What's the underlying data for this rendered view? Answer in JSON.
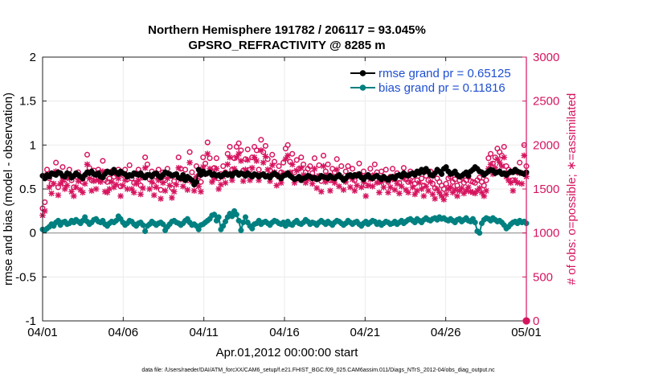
{
  "chart_data": {
    "type": "line",
    "title": "Northern Hemisphere 191782 / 206117 = 93.045%",
    "subtitle": "GPSRO_REFRACTIVITY @ 8285 m",
    "xlabel": "Apr.01,2012 00:00:00 start",
    "ylabel": "rmse and bias (model - observation)",
    "y2label": "# of obs: o=possible; ∗=assimilated",
    "footnote": "data file: /Users/raeder/DAI/ATM_forcXX/CAM6_setup/f.e21.FHIST_BGC.f09_025.CAM6assim.011/Diags_NTrS_2012-04/obs_diag_output.nc",
    "x_range_days": [
      0,
      30
    ],
    "ylim": [
      -1,
      2
    ],
    "y2lim": [
      0,
      3000
    ],
    "x_tick_labels": [
      "04/01",
      "04/06",
      "04/11",
      "04/16",
      "04/21",
      "04/26",
      "05/01"
    ],
    "y_tick_labels": [
      "-1",
      "-0.5",
      "0",
      "0.5",
      "1",
      "1.5",
      "2"
    ],
    "y2_tick_labels": [
      "0",
      "500",
      "1000",
      "1500",
      "2000",
      "2500",
      "3000"
    ],
    "grid": true,
    "legend_position": "top-right",
    "colors": {
      "rmse": "#000000",
      "bias": "#008080",
      "counts": "#d6145f",
      "legend_text": "#1f4fd1",
      "grid": "#ebebeb"
    },
    "series": [
      {
        "name": "rmse grand pr = 0.65125",
        "axis": "left",
        "values": [
          0.65,
          0.62,
          0.66,
          0.64,
          0.68,
          0.67,
          0.66,
          0.69,
          0.68,
          0.65,
          0.64,
          0.68,
          0.67,
          0.63,
          0.65,
          0.68,
          0.66,
          0.64,
          0.62,
          0.66,
          0.69,
          0.68,
          0.7,
          0.67,
          0.66,
          0.68,
          0.64,
          0.63,
          0.67,
          0.7,
          0.69,
          0.68,
          0.72,
          0.69,
          0.67,
          0.7,
          0.68,
          0.67,
          0.64,
          0.66,
          0.65,
          0.68,
          0.67,
          0.66,
          0.68,
          0.65,
          0.63,
          0.66,
          0.66,
          0.64,
          0.67,
          0.68,
          0.65,
          0.63,
          0.66,
          0.69,
          0.68,
          0.67,
          0.65,
          0.66,
          0.67,
          0.63,
          0.62,
          0.66,
          0.6,
          0.64,
          0.62,
          0.6,
          0.55,
          0.58,
          0.72,
          0.66,
          0.7,
          0.67,
          0.68,
          0.69,
          0.66,
          0.67,
          0.65,
          0.66,
          0.64,
          0.66,
          0.68,
          0.66,
          0.67,
          0.65,
          0.68,
          0.69,
          0.66,
          0.68,
          0.67,
          0.65,
          0.68,
          0.66,
          0.64,
          0.67,
          0.66,
          0.64,
          0.66,
          0.67,
          0.64,
          0.65,
          0.63,
          0.66,
          0.68,
          0.66,
          0.64,
          0.62,
          0.65,
          0.66,
          0.68,
          0.65,
          0.63,
          0.61,
          0.62,
          0.64,
          0.6,
          0.62,
          0.63,
          0.65,
          0.64,
          0.62,
          0.63,
          0.61,
          0.62,
          0.65,
          0.64,
          0.63,
          0.62,
          0.65,
          0.63,
          0.62,
          0.64,
          0.66,
          0.63,
          0.6,
          0.62,
          0.65,
          0.66,
          0.64,
          0.66,
          0.65,
          0.67,
          0.63,
          0.61,
          0.64,
          0.66,
          0.63,
          0.62,
          0.64,
          0.65,
          0.63,
          0.61,
          0.64,
          0.62,
          0.6,
          0.63,
          0.64,
          0.62,
          0.65,
          0.66,
          0.64,
          0.68,
          0.66,
          0.65,
          0.67,
          0.68,
          0.66,
          0.7,
          0.68,
          0.72,
          0.69,
          0.73,
          0.7,
          0.66,
          0.65,
          0.68,
          0.72,
          0.7,
          0.67,
          0.73,
          0.75,
          0.7,
          0.67,
          0.68,
          0.7,
          0.66,
          0.64,
          0.65,
          0.67,
          0.69,
          0.65,
          0.7,
          0.72,
          0.75,
          0.73,
          0.7,
          0.69,
          0.66,
          0.68,
          0.7,
          0.72,
          0.71,
          0.68,
          0.69,
          0.7,
          0.67,
          0.68,
          0.66,
          0.68,
          0.7,
          0.69,
          0.72,
          0.7,
          0.69,
          0.68,
          0.67,
          0.69
        ]
      },
      {
        "name": "bias grand pr = 0.11816",
        "axis": "left",
        "values": [
          0.04,
          0.03,
          0.05,
          0.07,
          0.1,
          0.08,
          0.12,
          0.14,
          0.09,
          0.12,
          0.13,
          0.1,
          0.11,
          0.14,
          0.12,
          0.15,
          0.13,
          0.11,
          0.14,
          0.18,
          0.13,
          0.1,
          0.12,
          0.15,
          0.16,
          0.13,
          0.12,
          0.14,
          0.1,
          0.08,
          0.11,
          0.13,
          0.12,
          0.14,
          0.19,
          0.16,
          0.12,
          0.09,
          0.11,
          0.14,
          0.13,
          0.1,
          0.08,
          0.11,
          0.12,
          0.09,
          0.02,
          0.08,
          0.1,
          0.13,
          0.11,
          0.09,
          0.11,
          0.12,
          0.1,
          0.03,
          0.07,
          0.1,
          0.13,
          0.14,
          0.12,
          0.11,
          0.09,
          0.11,
          0.14,
          0.16,
          0.12,
          0.09,
          0.1,
          0.08,
          0.04,
          0.09,
          0.1,
          0.12,
          0.14,
          0.16,
          0.2,
          0.21,
          0.14,
          0.18,
          0.04,
          0.08,
          0.13,
          0.18,
          0.22,
          0.19,
          0.25,
          0.21,
          0.14,
          0.03,
          0.12,
          0.18,
          0.12,
          0.08,
          0.05,
          0.1,
          0.11,
          0.14,
          0.1,
          0.12,
          0.13,
          0.11,
          0.09,
          0.12,
          0.14,
          0.13,
          0.11,
          0.1,
          0.12,
          0.08,
          0.13,
          0.1,
          0.09,
          0.12,
          0.14,
          0.11,
          0.1,
          0.12,
          0.15,
          0.13,
          0.1,
          0.12,
          0.11,
          0.09,
          0.12,
          0.14,
          0.12,
          0.1,
          0.13,
          0.11,
          0.09,
          0.12,
          0.14,
          0.13,
          0.11,
          0.09,
          0.11,
          0.14,
          0.12,
          0.1,
          0.12,
          0.13,
          0.1,
          0.08,
          0.11,
          0.13,
          0.1,
          0.12,
          0.14,
          0.13,
          0.1,
          0.12,
          0.09,
          0.11,
          0.13,
          0.12,
          0.1,
          0.11,
          0.13,
          0.1,
          0.12,
          0.14,
          0.11,
          0.13,
          0.15,
          0.16,
          0.14,
          0.12,
          0.16,
          0.14,
          0.12,
          0.15,
          0.17,
          0.15,
          0.14,
          0.16,
          0.17,
          0.15,
          0.18,
          0.16,
          0.17,
          0.15,
          0.14,
          0.16,
          0.14,
          0.12,
          0.15,
          0.16,
          0.13,
          0.15,
          0.17,
          0.14,
          0.13,
          0.16,
          0.12,
          0.02,
          0.0,
          0.11,
          0.15,
          0.17,
          0.16,
          0.14,
          0.17,
          0.15,
          0.13,
          0.14,
          0.12,
          0.09,
          0.05,
          0.07,
          0.1,
          0.12,
          0.13,
          0.11,
          0.14,
          0.12,
          0.13,
          0.11
        ]
      },
      {
        "name": "possible (o)",
        "axis": "right",
        "marker": "o",
        "values": [
          1280,
          1350,
          1720,
          1620,
          1560,
          1680,
          1800,
          1520,
          1680,
          1750,
          1560,
          1630,
          1720,
          1600,
          1520,
          1640,
          1690,
          1610,
          1580,
          1660,
          1890,
          1740,
          1600,
          1710,
          1630,
          1720,
          1690,
          1820,
          1600,
          1580,
          1620,
          1700,
          1640,
          1670,
          1720,
          1530,
          1660,
          1720,
          1610,
          1770,
          1620,
          1570,
          1680,
          1720,
          1540,
          1630,
          1860,
          1780,
          1610,
          1700,
          1540,
          1640,
          1720,
          1490,
          1690,
          1600,
          1730,
          1650,
          1510,
          1590,
          1670,
          1860,
          1730,
          1640,
          1720,
          1600,
          1920,
          1690,
          1600,
          1760,
          1640,
          1580,
          1860,
          1790,
          2030,
          1850,
          1690,
          1740,
          1850,
          1620,
          1670,
          1760,
          1690,
          1900,
          1980,
          1720,
          1850,
          1980,
          2020,
          1940,
          1710,
          1840,
          1950,
          1720,
          1860,
          1980,
          1940,
          1720,
          2060,
          1920,
          1990,
          1840,
          1710,
          1890,
          1810,
          1660,
          1760,
          1690,
          1800,
          1960,
          2000,
          1810,
          1900,
          1690,
          1830,
          1730,
          1860,
          1780,
          1690,
          1730,
          1760,
          1680,
          1850,
          1630,
          1770,
          1590,
          1880,
          1700,
          1780,
          1600,
          1730,
          1690,
          1840,
          1650,
          1760,
          1610,
          1700,
          1760,
          1640,
          1730,
          1600,
          1660,
          1790,
          1640,
          1700,
          1540,
          1660,
          1730,
          1650,
          1780,
          1690,
          1580,
          1700,
          1640,
          1720,
          1580,
          1640,
          1730,
          1610,
          1680,
          1570,
          1650,
          1740,
          1610,
          1580,
          1700,
          1640,
          1560,
          1600,
          1690,
          1620,
          1540,
          1650,
          1600,
          1700,
          1560,
          1510,
          1620,
          1580,
          1540,
          1500,
          1560,
          1620,
          1640,
          1580,
          1610,
          1540,
          1600,
          1630,
          1570,
          1600,
          1640,
          1590,
          1580,
          1570,
          1600,
          1630,
          1580,
          1540,
          1600,
          1850,
          1900,
          1790,
          1860,
          1960,
          1920,
          1880,
          1980,
          1760,
          1720,
          1690,
          1600,
          1720,
          1690,
          1800,
          1680,
          2000,
          1760
        ]
      },
      {
        "name": "assimilated (∗)",
        "axis": "right",
        "marker": "*",
        "values": [
          1200,
          1250,
          1660,
          1520,
          1450,
          1560,
          1700,
          1430,
          1560,
          1600,
          1500,
          1540,
          1620,
          1470,
          1420,
          1520,
          1590,
          1490,
          1460,
          1560,
          1780,
          1620,
          1480,
          1590,
          1500,
          1600,
          1580,
          1700,
          1470,
          1460,
          1500,
          1580,
          1520,
          1550,
          1620,
          1420,
          1540,
          1600,
          1500,
          1650,
          1500,
          1460,
          1560,
          1600,
          1440,
          1510,
          1740,
          1660,
          1500,
          1580,
          1430,
          1520,
          1600,
          1390,
          1570,
          1480,
          1620,
          1540,
          1400,
          1470,
          1550,
          1740,
          1610,
          1530,
          1600,
          1490,
          1800,
          1580,
          1480,
          1640,
          1530,
          1470,
          1750,
          1670,
          1900,
          1730,
          1580,
          1620,
          1730,
          1500,
          1550,
          1640,
          1570,
          1780,
          1860,
          1600,
          1730,
          1860,
          1900,
          1820,
          1590,
          1720,
          1830,
          1600,
          1740,
          1860,
          1820,
          1600,
          1940,
          1800,
          1870,
          1720,
          1590,
          1770,
          1690,
          1540,
          1640,
          1570,
          1680,
          1840,
          1880,
          1690,
          1780,
          1570,
          1710,
          1610,
          1740,
          1660,
          1570,
          1610,
          1640,
          1560,
          1730,
          1510,
          1650,
          1470,
          1760,
          1580,
          1660,
          1480,
          1610,
          1570,
          1720,
          1530,
          1640,
          1490,
          1580,
          1640,
          1520,
          1610,
          1480,
          1540,
          1670,
          1520,
          1580,
          1420,
          1540,
          1610,
          1530,
          1660,
          1570,
          1460,
          1580,
          1520,
          1600,
          1460,
          1520,
          1610,
          1490,
          1560,
          1450,
          1530,
          1620,
          1490,
          1460,
          1580,
          1520,
          1440,
          1480,
          1570,
          1500,
          1420,
          1530,
          1480,
          1580,
          1440,
          1390,
          1500,
          1460,
          1420,
          1380,
          1440,
          1500,
          1520,
          1460,
          1490,
          1420,
          1480,
          1510,
          1450,
          1480,
          1520,
          1470,
          1460,
          1450,
          1480,
          1510,
          1460,
          1420,
          1480,
          1730,
          1780,
          1670,
          1740,
          1840,
          1800,
          1760,
          1860,
          1640,
          1600,
          1570,
          1480,
          1600,
          1570,
          1680,
          1560,
          1880,
          1640
        ]
      }
    ],
    "markers_right_axis_zero": [
      {
        "x_day": 30,
        "value": 0
      }
    ]
  }
}
